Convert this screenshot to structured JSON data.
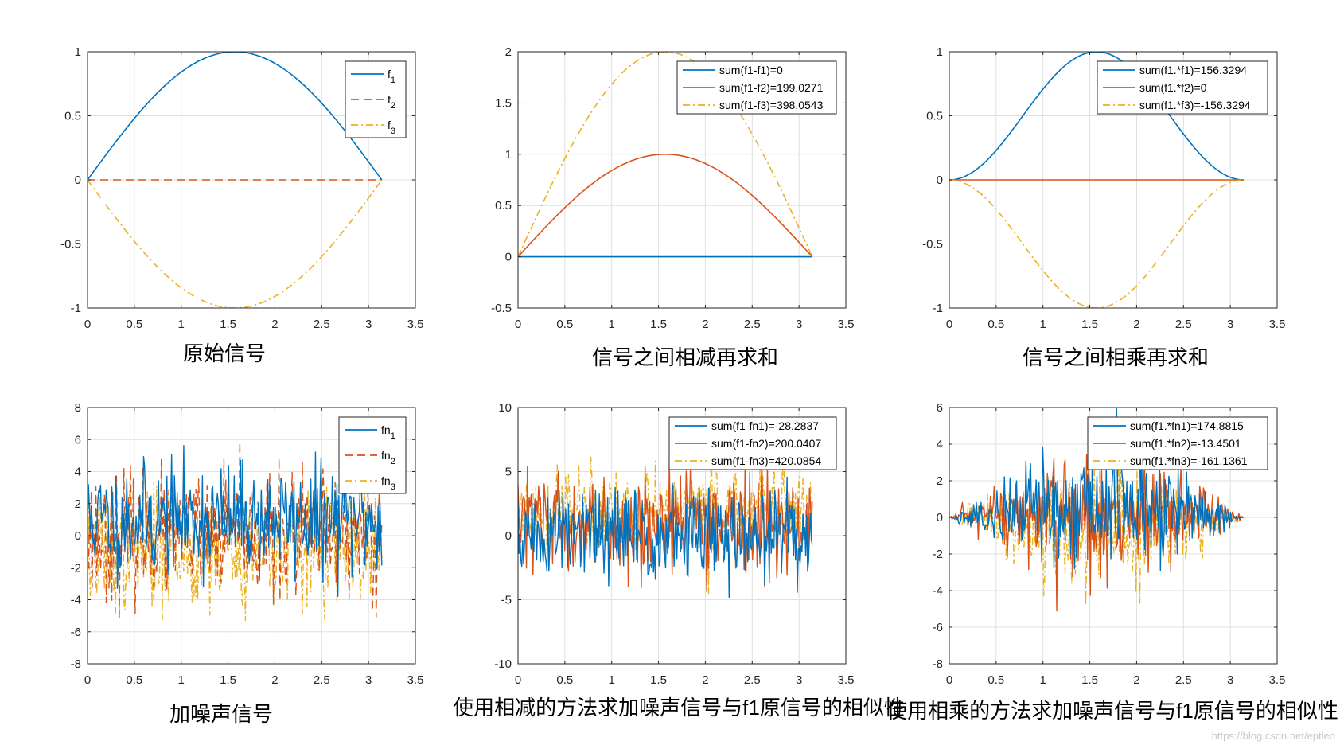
{
  "watermark": "https://blog.csdn.net/eptleo",
  "colors": {
    "c1": "#0072BD",
    "c2": "#D95319",
    "c3": "#EDB120",
    "axis": "#262626",
    "grid": "#DFDFDF"
  },
  "chart_data": [
    {
      "type": "line",
      "caption": "原始信号",
      "xlim": [
        0,
        3.5
      ],
      "ylim": [
        -1,
        1
      ],
      "xticks": [
        "0",
        "0.5",
        "1",
        "1.5",
        "2",
        "2.5",
        "3",
        "3.5"
      ],
      "yticks": [
        "-1",
        "-0.5",
        "0",
        "0.5",
        "1"
      ],
      "legend_position": "top-right",
      "series": [
        {
          "name": "f",
          "sub": "1",
          "style": "solid",
          "color": "#0072BD",
          "fn": "sin"
        },
        {
          "name": "f",
          "sub": "2",
          "style": "dashed",
          "color": "#D95319",
          "fn": "zero"
        },
        {
          "name": "f",
          "sub": "3",
          "style": "dashdot",
          "color": "#EDB120",
          "fn": "negsin"
        }
      ]
    },
    {
      "type": "line",
      "caption": "信号之间相减再求和",
      "xlim": [
        0,
        3.5
      ],
      "ylim": [
        -0.5,
        2
      ],
      "xticks": [
        "0",
        "0.5",
        "1",
        "1.5",
        "2",
        "2.5",
        "3",
        "3.5"
      ],
      "yticks": [
        "-0.5",
        "0",
        "0.5",
        "1",
        "1.5",
        "2"
      ],
      "legend_position": "top-right",
      "series": [
        {
          "name": "sum(f1-f1)=0",
          "style": "solid",
          "color": "#0072BD",
          "fn": "zero"
        },
        {
          "name": "sum(f1-f2)=199.0271",
          "style": "solid",
          "color": "#D95319",
          "fn": "sin"
        },
        {
          "name": "sum(f1-f3)=398.0543",
          "style": "dashdot",
          "color": "#EDB120",
          "fn": "twosin"
        }
      ]
    },
    {
      "type": "line",
      "caption": "信号之间相乘再求和",
      "xlim": [
        0,
        3.5
      ],
      "ylim": [
        -1,
        1
      ],
      "xticks": [
        "0",
        "0.5",
        "1",
        "1.5",
        "2",
        "2.5",
        "3",
        "3.5"
      ],
      "yticks": [
        "-1",
        "-0.5",
        "0",
        "0.5",
        "1"
      ],
      "legend_position": "top-right",
      "series": [
        {
          "name": "sum(f1.*f1)=156.3294",
          "style": "solid",
          "color": "#0072BD",
          "fn": "sin2"
        },
        {
          "name": "sum(f1.*f2)=0",
          "style": "solid",
          "color": "#D95319",
          "fn": "zero"
        },
        {
          "name": "sum(f1.*f3)=-156.3294",
          "style": "dashdot",
          "color": "#EDB120",
          "fn": "negsin2"
        }
      ]
    },
    {
      "type": "line",
      "caption": "加噪声信号",
      "xlim": [
        0,
        3.5
      ],
      "ylim": [
        -8,
        8
      ],
      "xticks": [
        "0",
        "0.5",
        "1",
        "1.5",
        "2",
        "2.5",
        "3",
        "3.5"
      ],
      "yticks": [
        "-8",
        "-6",
        "-4",
        "-2",
        "0",
        "2",
        "4",
        "6",
        "8"
      ],
      "legend_position": "top-right",
      "series": [
        {
          "name": "fn",
          "sub": "1",
          "style": "solid",
          "color": "#0072BD",
          "fn": "noise",
          "base": 1,
          "amp": 1.7,
          "env": 0,
          "seed": 11
        },
        {
          "name": "fn",
          "sub": "2",
          "style": "dashed",
          "color": "#D95319",
          "fn": "noise",
          "base": 0,
          "amp": 1.9,
          "env": 0,
          "seed": 23
        },
        {
          "name": "fn",
          "sub": "3",
          "style": "dashdot",
          "color": "#EDB120",
          "fn": "noise",
          "base": -1,
          "amp": 1.8,
          "env": 0,
          "seed": 37
        }
      ]
    },
    {
      "type": "line",
      "caption": "使用相减的方法求加噪声信号与f1原信号的相似性",
      "xlim": [
        0,
        3.5
      ],
      "ylim": [
        -10,
        10
      ],
      "xticks": [
        "0",
        "0.5",
        "1",
        "1.5",
        "2",
        "2.5",
        "3",
        "3.5"
      ],
      "yticks": [
        "-10",
        "-5",
        "0",
        "5",
        "10"
      ],
      "legend_position": "top-right",
      "series": [
        {
          "name": "sum(f1-fn1)=-28.2837",
          "style": "solid",
          "color": "#0072BD",
          "fn": "noise",
          "base": 0,
          "amp": 1.9,
          "env": 0,
          "seed": 51
        },
        {
          "name": "sum(f1-fn2)=200.0407",
          "style": "solid",
          "color": "#D95319",
          "fn": "noise",
          "base": 0.9,
          "amp": 1.9,
          "env": 0,
          "seed": 63
        },
        {
          "name": "sum(f1-fn3)=420.0854",
          "style": "dashdot",
          "color": "#EDB120",
          "fn": "noise",
          "base": 1.8,
          "amp": 1.8,
          "env": 0,
          "seed": 77
        }
      ]
    },
    {
      "type": "line",
      "caption": "使用相乘的方法求加噪声信号与f1原信号的相似性",
      "xlim": [
        0,
        3.5
      ],
      "ylim": [
        -8,
        6
      ],
      "xticks": [
        "0",
        "0.5",
        "1",
        "1.5",
        "2",
        "2.5",
        "3",
        "3.5"
      ],
      "yticks": [
        "-8",
        "-6",
        "-4",
        "-2",
        "0",
        "2",
        "4",
        "6"
      ],
      "legend_position": "top-right",
      "series": [
        {
          "name": "sum(f1.*fn1)=174.8815",
          "style": "solid",
          "color": "#0072BD",
          "fn": "noise",
          "base": 0.9,
          "amp": 1.8,
          "env": 1,
          "seed": 89
        },
        {
          "name": "sum(f1.*fn2)=-13.4501",
          "style": "solid",
          "color": "#D95319",
          "fn": "noise",
          "base": 0,
          "amp": 1.9,
          "env": 1,
          "seed": 97
        },
        {
          "name": "sum(f1.*fn3)=-161.1361",
          "style": "dashdot",
          "color": "#EDB120",
          "fn": "noise",
          "base": -0.9,
          "amp": 1.8,
          "env": 1,
          "seed": 101
        }
      ]
    }
  ]
}
